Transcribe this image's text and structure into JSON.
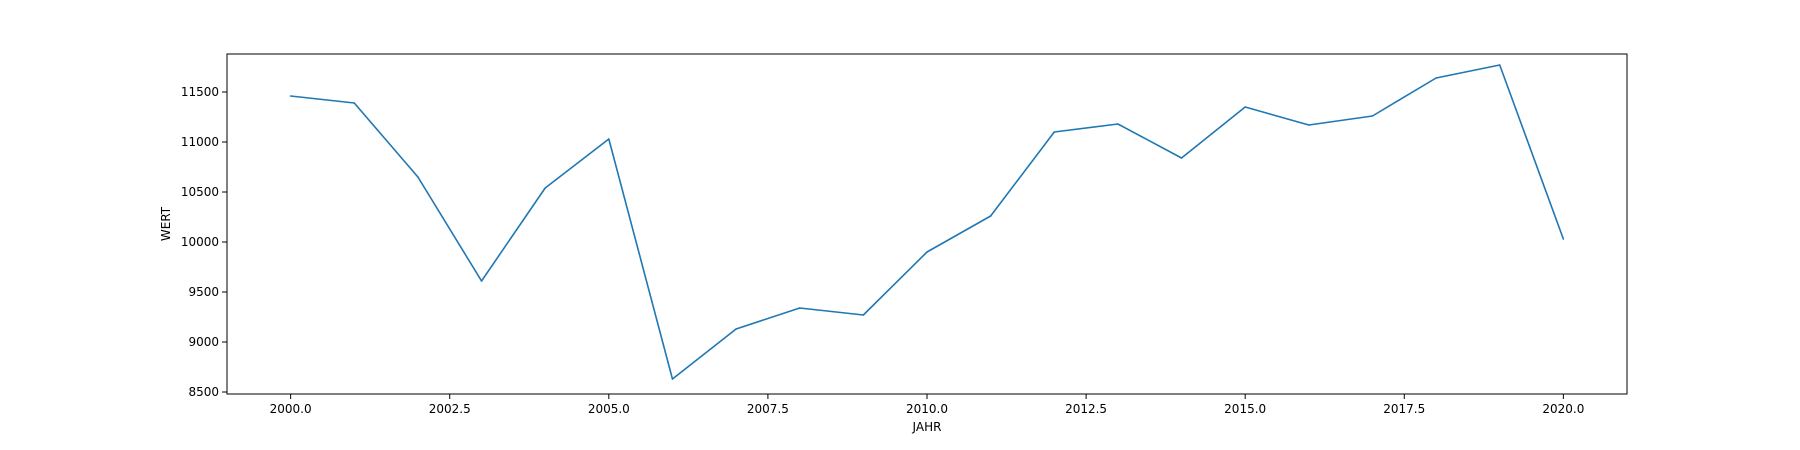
{
  "chart_data": {
    "type": "line",
    "title": "",
    "xlabel": "JAHR",
    "ylabel": "WERT",
    "xlim": [
      1999.0,
      2021.0
    ],
    "ylim": [
      8480,
      11880
    ],
    "grid": false,
    "legend": "none",
    "x_ticks": [
      2000.0,
      2002.5,
      2005.0,
      2007.5,
      2010.0,
      2012.5,
      2015.0,
      2017.5,
      2020.0
    ],
    "x_tick_labels": [
      "2000.0",
      "2002.5",
      "2005.0",
      "2007.5",
      "2010.0",
      "2012.5",
      "2015.0",
      "2017.5",
      "2020.0"
    ],
    "y_ticks": [
      8500,
      9000,
      9500,
      10000,
      10500,
      11000,
      11500
    ],
    "y_tick_labels": [
      "8500",
      "9000",
      "9500",
      "10000",
      "10500",
      "11000",
      "11500"
    ],
    "series": [
      {
        "color": "#1f77b4",
        "x": [
          2000,
          2001,
          2002,
          2003,
          2004,
          2005,
          2006,
          2007,
          2008,
          2009,
          2010,
          2011,
          2012,
          2013,
          2014,
          2015,
          2016,
          2017,
          2018,
          2019,
          2020
        ],
        "y": [
          11460,
          11390,
          10650,
          9610,
          10540,
          11030,
          8630,
          9130,
          9340,
          9270,
          9900,
          10260,
          11100,
          11180,
          10840,
          11350,
          11170,
          11260,
          11640,
          11770,
          10030
        ]
      }
    ]
  }
}
